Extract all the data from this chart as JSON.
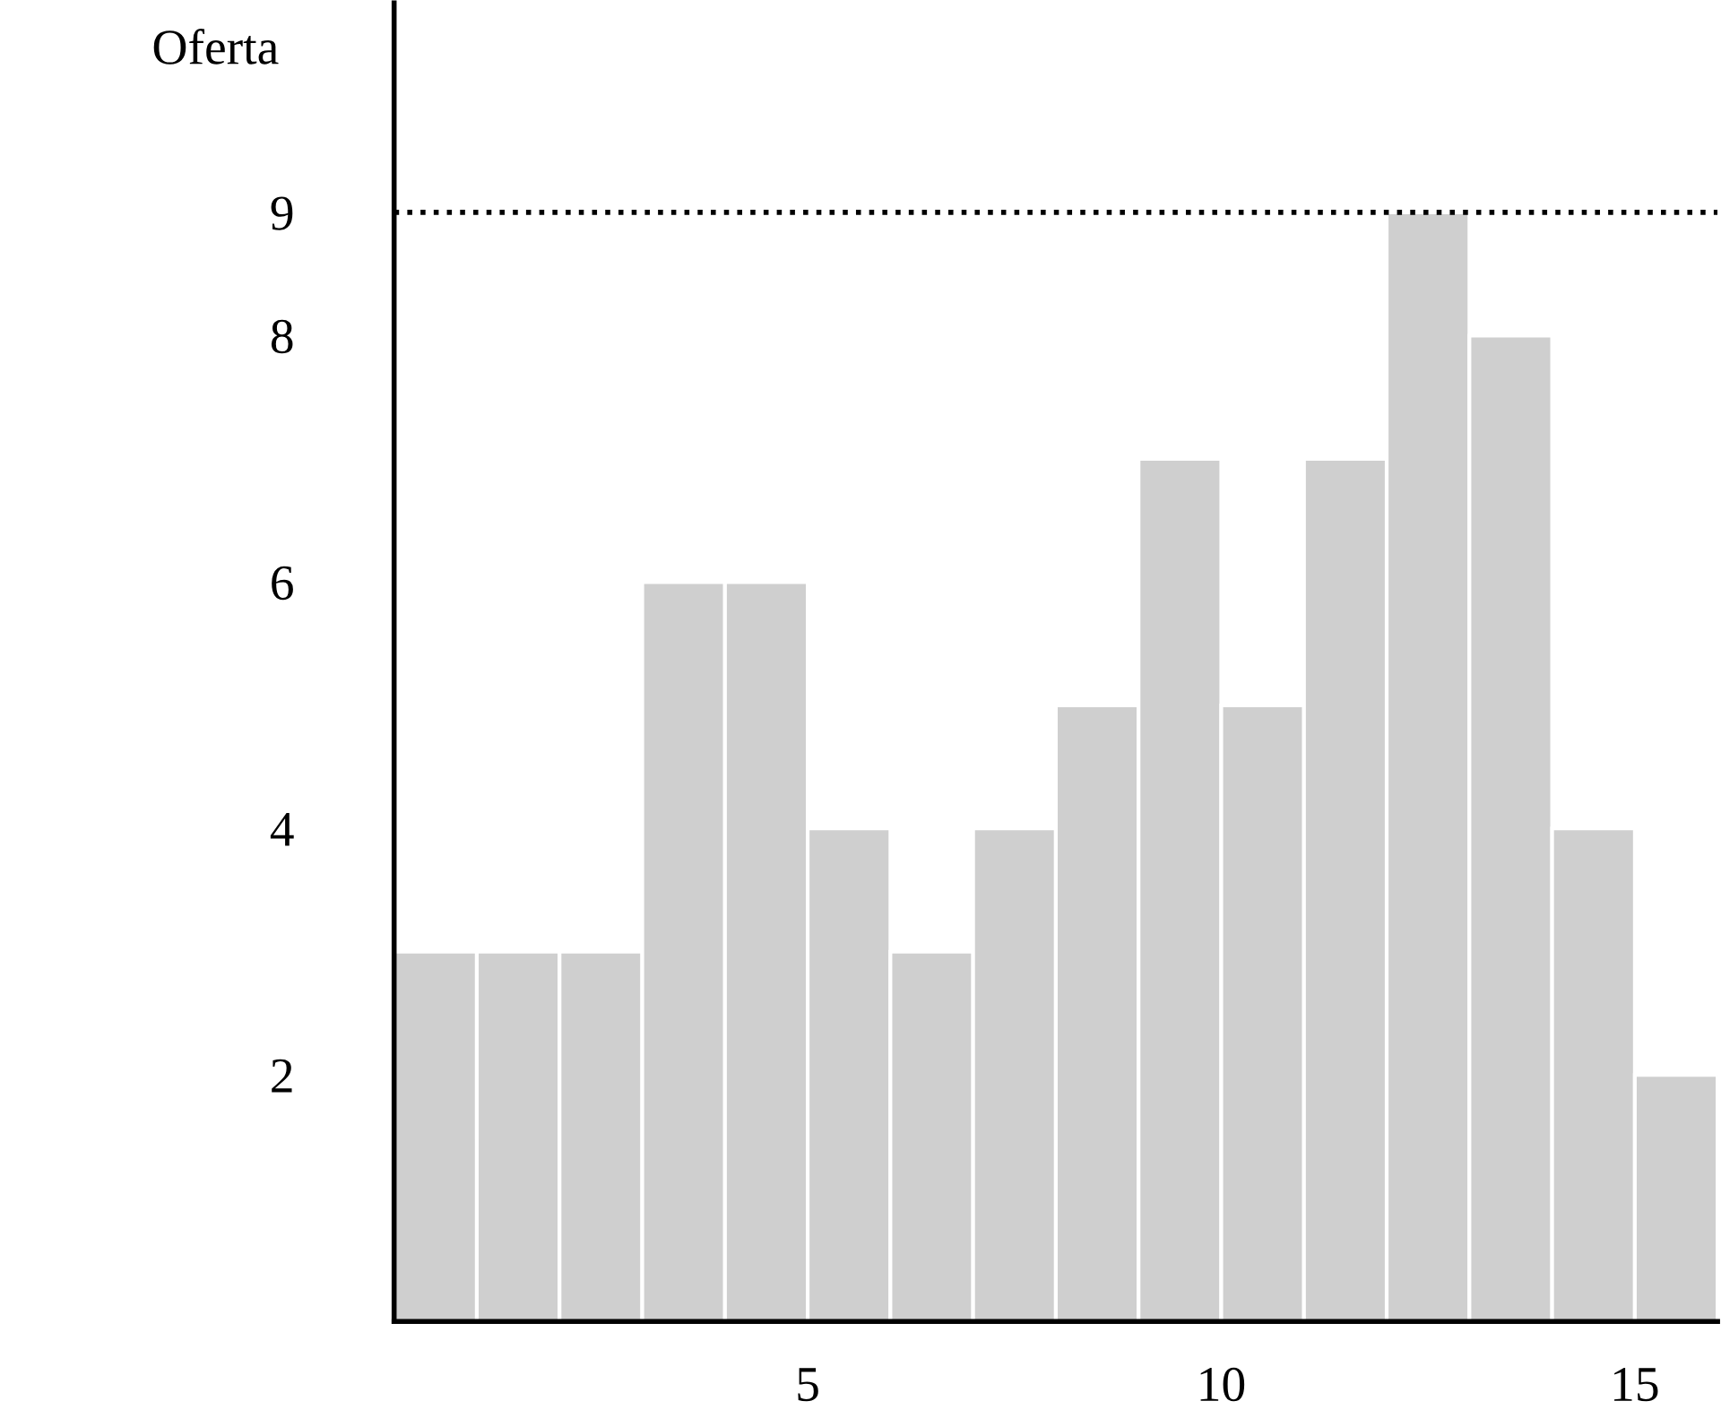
{
  "chart_data": {
    "type": "histogram",
    "ylabel": "Oferta",
    "bins": [
      0,
      1,
      2,
      3,
      4,
      5,
      6,
      7,
      8,
      9,
      10,
      11,
      12,
      13,
      14,
      15,
      16
    ],
    "values": [
      3,
      3,
      3,
      6,
      6,
      4,
      3,
      4,
      5,
      7,
      5,
      7,
      9,
      8,
      4,
      2
    ],
    "color": "#cfcfcf",
    "xlim": [
      0,
      16
    ],
    "xticks": [
      5,
      10,
      15
    ],
    "ylim": [
      0,
      10.7
    ],
    "yticks": [
      2,
      4,
      6,
      8,
      9
    ],
    "ref_lines": [
      {
        "axis": "y",
        "value": 9,
        "line_style": "dotted",
        "color": "#000000"
      }
    ],
    "grid": false,
    "legend": false
  }
}
